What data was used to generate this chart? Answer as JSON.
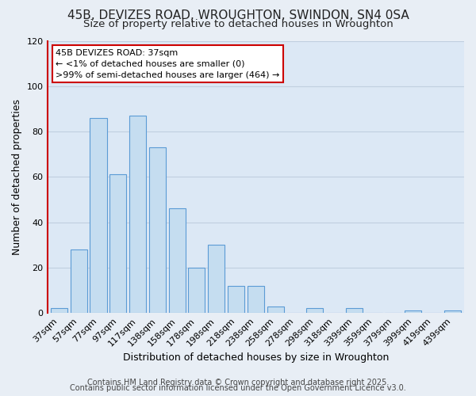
{
  "title": "45B, DEVIZES ROAD, WROUGHTON, SWINDON, SN4 0SA",
  "subtitle": "Size of property relative to detached houses in Wroughton",
  "xlabel": "Distribution of detached houses by size in Wroughton",
  "ylabel": "Number of detached properties",
  "bar_color": "#c5ddf0",
  "bar_edge_color": "#5b9bd5",
  "categories": [
    "37sqm",
    "57sqm",
    "77sqm",
    "97sqm",
    "117sqm",
    "138sqm",
    "158sqm",
    "178sqm",
    "198sqm",
    "218sqm",
    "238sqm",
    "258sqm",
    "278sqm",
    "298sqm",
    "318sqm",
    "339sqm",
    "359sqm",
    "379sqm",
    "399sqm",
    "419sqm",
    "439sqm"
  ],
  "values": [
    2,
    28,
    86,
    61,
    87,
    73,
    46,
    20,
    30,
    12,
    12,
    3,
    0,
    2,
    0,
    2,
    0,
    0,
    1,
    0,
    1
  ],
  "ylim": [
    0,
    120
  ],
  "yticks": [
    0,
    20,
    40,
    60,
    80,
    100,
    120
  ],
  "annotation_line1": "45B DEVIZES ROAD: 37sqm",
  "annotation_line2": "← <1% of detached houses are smaller (0)",
  "annotation_line3": ">99% of semi-detached houses are larger (464) →",
  "footer_line1": "Contains HM Land Registry data © Crown copyright and database right 2025.",
  "footer_line2": "Contains public sector information licensed under the Open Government Licence v3.0.",
  "background_color": "#e8eef5",
  "plot_bg_color": "#dce8f5",
  "grid_color": "#c0cfe0",
  "title_fontsize": 11,
  "subtitle_fontsize": 9.5,
  "axis_label_fontsize": 9,
  "tick_fontsize": 8,
  "annotation_fontsize": 8,
  "footer_fontsize": 7
}
